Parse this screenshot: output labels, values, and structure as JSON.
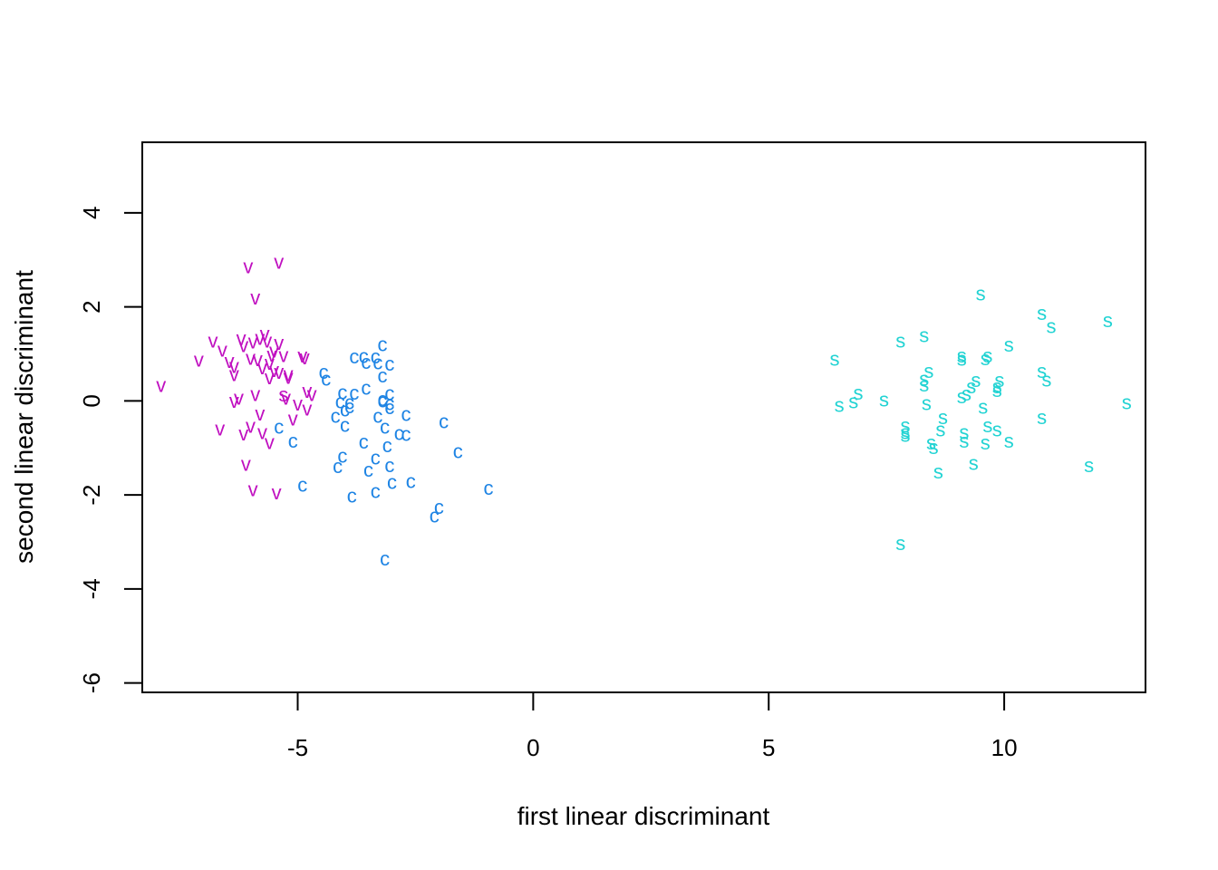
{
  "chart_data": {
    "type": "scatter",
    "title": "",
    "xlabel": "first linear discriminant",
    "ylabel": "second linear discriminant",
    "xlim": [
      -8.3,
      13.0
    ],
    "ylim": [
      -6.2,
      5.5
    ],
    "x_ticks": [
      -5,
      0,
      5,
      10
    ],
    "y_ticks": [
      -6,
      -4,
      -2,
      0,
      2,
      4
    ],
    "x_tick_labels": [
      "-5",
      "0",
      "5",
      "10"
    ],
    "y_tick_labels": [
      "-6",
      "-4",
      "-2",
      "0",
      "2",
      "4"
    ],
    "grid": false,
    "legend": "none",
    "series": [
      {
        "marker": "s",
        "color": "#22d3d3",
        "points": [
          [
            9.5,
            2.27
          ],
          [
            10.8,
            1.86
          ],
          [
            12.2,
            1.7
          ],
          [
            11.0,
            1.58
          ],
          [
            8.3,
            1.38
          ],
          [
            7.8,
            1.27
          ],
          [
            10.1,
            1.18
          ],
          [
            9.1,
            0.95
          ],
          [
            9.65,
            0.95
          ],
          [
            9.6,
            0.89
          ],
          [
            9.1,
            0.88
          ],
          [
            6.4,
            0.88
          ],
          [
            10.8,
            0.62
          ],
          [
            8.4,
            0.62
          ],
          [
            8.3,
            0.46
          ],
          [
            9.4,
            0.43
          ],
          [
            9.9,
            0.43
          ],
          [
            10.9,
            0.44
          ],
          [
            8.3,
            0.33
          ],
          [
            9.3,
            0.3
          ],
          [
            9.85,
            0.3
          ],
          [
            9.85,
            0.22
          ],
          [
            6.9,
            0.16
          ],
          [
            9.2,
            0.14
          ],
          [
            9.1,
            0.08
          ],
          [
            7.45,
            0.02
          ],
          [
            6.8,
            -0.02
          ],
          [
            12.6,
            -0.04
          ],
          [
            8.35,
            -0.06
          ],
          [
            6.5,
            -0.1
          ],
          [
            9.55,
            -0.14
          ],
          [
            8.7,
            -0.36
          ],
          [
            10.8,
            -0.36
          ],
          [
            9.65,
            -0.53
          ],
          [
            7.9,
            -0.53
          ],
          [
            8.65,
            -0.62
          ],
          [
            9.85,
            -0.62
          ],
          [
            7.9,
            -0.68
          ],
          [
            9.15,
            -0.68
          ],
          [
            7.9,
            -0.74
          ],
          [
            9.15,
            -0.86
          ],
          [
            10.1,
            -0.86
          ],
          [
            8.45,
            -0.9
          ],
          [
            9.6,
            -0.9
          ],
          [
            8.5,
            -1.0
          ],
          [
            9.35,
            -1.33
          ],
          [
            11.8,
            -1.38
          ],
          [
            8.6,
            -1.52
          ],
          [
            7.8,
            -3.04
          ]
        ]
      },
      {
        "marker": "c",
        "color": "#1e84e4",
        "points": [
          [
            -3.2,
            1.19
          ],
          [
            -3.8,
            0.93
          ],
          [
            -3.6,
            0.94
          ],
          [
            -3.35,
            0.93
          ],
          [
            -3.55,
            0.82
          ],
          [
            -3.3,
            0.81
          ],
          [
            -3.05,
            0.78
          ],
          [
            -4.45,
            0.6
          ],
          [
            -3.2,
            0.53
          ],
          [
            -4.4,
            0.46
          ],
          [
            -3.55,
            0.27
          ],
          [
            -4.05,
            0.17
          ],
          [
            -3.8,
            0.16
          ],
          [
            -3.05,
            0.15
          ],
          [
            -3.2,
            0.03
          ],
          [
            -3.2,
            0.0
          ],
          [
            -4.1,
            -0.02
          ],
          [
            -3.9,
            -0.04
          ],
          [
            -3.05,
            -0.06
          ],
          [
            -3.9,
            -0.13
          ],
          [
            -3.05,
            -0.15
          ],
          [
            -4.0,
            -0.2
          ],
          [
            -2.7,
            -0.29
          ],
          [
            -3.3,
            -0.33
          ],
          [
            -4.2,
            -0.33
          ],
          [
            -1.9,
            -0.45
          ],
          [
            -5.4,
            -0.56
          ],
          [
            -3.15,
            -0.56
          ],
          [
            -4.0,
            -0.52
          ],
          [
            -2.85,
            -0.7
          ],
          [
            -2.7,
            -0.72
          ],
          [
            -5.1,
            -0.86
          ],
          [
            -3.6,
            -0.88
          ],
          [
            -3.1,
            -0.96
          ],
          [
            -1.6,
            -1.08
          ],
          [
            -4.05,
            -1.18
          ],
          [
            -3.35,
            -1.22
          ],
          [
            -4.15,
            -1.4
          ],
          [
            -3.05,
            -1.38
          ],
          [
            -3.5,
            -1.48
          ],
          [
            -3.0,
            -1.74
          ],
          [
            -2.6,
            -1.72
          ],
          [
            -4.9,
            -1.8
          ],
          [
            -0.95,
            -1.86
          ],
          [
            -3.35,
            -1.93
          ],
          [
            -3.85,
            -2.03
          ],
          [
            -2.0,
            -2.27
          ],
          [
            -2.1,
            -2.45
          ],
          [
            -3.15,
            -3.37
          ]
        ]
      },
      {
        "marker": "v",
        "color": "#c010c0",
        "points": [
          [
            -5.4,
            2.95
          ],
          [
            -6.05,
            2.85
          ],
          [
            -5.9,
            2.18
          ],
          [
            -5.7,
            1.41
          ],
          [
            -5.8,
            1.33
          ],
          [
            -6.2,
            1.32
          ],
          [
            -5.95,
            1.25
          ],
          [
            -6.8,
            1.27
          ],
          [
            -5.65,
            1.27
          ],
          [
            -5.4,
            1.22
          ],
          [
            -6.15,
            1.17
          ],
          [
            -6.6,
            1.08
          ],
          [
            -5.5,
            1.06
          ],
          [
            -5.55,
            0.97
          ],
          [
            -5.3,
            0.96
          ],
          [
            -4.9,
            0.95
          ],
          [
            -4.85,
            0.91
          ],
          [
            -6.0,
            0.9
          ],
          [
            -5.85,
            0.87
          ],
          [
            -7.1,
            0.86
          ],
          [
            -6.45,
            0.84
          ],
          [
            -5.6,
            0.8
          ],
          [
            -6.35,
            0.73
          ],
          [
            -5.75,
            0.7
          ],
          [
            -5.5,
            0.64
          ],
          [
            -5.4,
            0.6
          ],
          [
            -6.35,
            0.56
          ],
          [
            -5.2,
            0.5
          ],
          [
            -5.6,
            0.49
          ],
          [
            -5.2,
            0.56
          ],
          [
            -7.9,
            0.32
          ],
          [
            -4.8,
            0.2
          ],
          [
            -4.7,
            0.13
          ],
          [
            -5.9,
            0.13
          ],
          [
            -5.25,
            0.05
          ],
          [
            -6.25,
            0.05
          ],
          [
            -6.35,
            -0.01
          ],
          [
            -5.0,
            -0.07
          ],
          [
            -4.8,
            -0.18
          ],
          [
            -5.8,
            -0.28
          ],
          [
            -5.1,
            -0.39
          ],
          [
            -6.0,
            -0.54
          ],
          [
            -6.65,
            -0.6
          ],
          [
            -5.75,
            -0.68
          ],
          [
            -6.15,
            -0.71
          ],
          [
            -5.6,
            -0.89
          ],
          [
            -6.1,
            -1.35
          ],
          [
            -5.95,
            -1.89
          ],
          [
            -5.45,
            -1.96
          ]
        ]
      }
    ],
    "stray_points": [
      {
        "marker": "s",
        "color": "#c010c0",
        "x": -5.3,
        "y": 0.12
      }
    ]
  }
}
